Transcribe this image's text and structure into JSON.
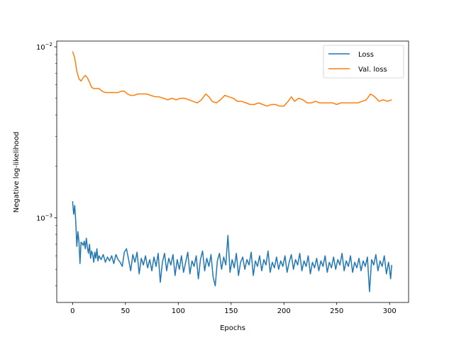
{
  "chart_data": {
    "type": "line",
    "title": "",
    "xlabel": "Epochs",
    "ylabel": "Negative log-likelihood",
    "xlim": [
      -15,
      318
    ],
    "ylim": [
      0.00032,
      0.0108
    ],
    "yscale": "log",
    "x_ticks": [
      0,
      50,
      100,
      150,
      200,
      250,
      300
    ],
    "x_tick_labels": [
      "0",
      "50",
      "100",
      "150",
      "200",
      "250",
      "300"
    ],
    "y_major_ticks": [
      0.001,
      0.01
    ],
    "y_tick_labels": [
      {
        "base": "10",
        "exp": "−3"
      },
      {
        "base": "10",
        "exp": "−2"
      }
    ],
    "grid": false,
    "legend_position": "upper right",
    "colors": {
      "loss": "#1f77b4",
      "val_loss": "#ff7f0e"
    },
    "series": [
      {
        "name": "Loss",
        "color": "#1f77b4",
        "points": [
          [
            0,
            0.00125
          ],
          [
            1,
            0.00105
          ],
          [
            2,
            0.00118
          ],
          [
            3,
            0.00095
          ],
          [
            4,
            0.00068
          ],
          [
            5,
            0.00083
          ],
          [
            6,
            0.00073
          ],
          [
            7,
            0.00054
          ],
          [
            8,
            0.00072
          ],
          [
            9,
            0.00071
          ],
          [
            10,
            0.00069
          ],
          [
            11,
            0.00073
          ],
          [
            12,
            0.00066
          ],
          [
            13,
            0.00076
          ],
          [
            14,
            0.00067
          ],
          [
            15,
            0.00062
          ],
          [
            16,
            0.0007
          ],
          [
            17,
            0.00058
          ],
          [
            18,
            0.00064
          ],
          [
            19,
            0.00061
          ],
          [
            20,
            0.00055
          ],
          [
            21,
            0.00063
          ],
          [
            22,
            0.00058
          ],
          [
            23,
            0.00066
          ],
          [
            24,
            0.00056
          ],
          [
            25,
            0.0006
          ],
          [
            27,
            0.00057
          ],
          [
            29,
            0.00061
          ],
          [
            31,
            0.00055
          ],
          [
            33,
            0.00059
          ],
          [
            35,
            0.00056
          ],
          [
            37,
            0.0006
          ],
          [
            39,
            0.00054
          ],
          [
            41,
            0.00061
          ],
          [
            43,
            0.00057
          ],
          [
            45,
            0.00055
          ],
          [
            47,
            0.00052
          ],
          [
            49,
            0.00063
          ],
          [
            51,
            0.00066
          ],
          [
            53,
            0.00057
          ],
          [
            55,
            0.00049
          ],
          [
            57,
            0.00061
          ],
          [
            59,
            0.00055
          ],
          [
            61,
            0.00063
          ],
          [
            63,
            0.00047
          ],
          [
            65,
            0.00058
          ],
          [
            67,
            0.00053
          ],
          [
            69,
            0.0006
          ],
          [
            71,
            0.00051
          ],
          [
            73,
            0.00057
          ],
          [
            75,
            0.00049
          ],
          [
            77,
            0.00059
          ],
          [
            79,
            0.00052
          ],
          [
            81,
            0.00062
          ],
          [
            83,
            0.00042
          ],
          [
            85,
            0.00055
          ],
          [
            87,
            0.00062
          ],
          [
            89,
            0.00049
          ],
          [
            91,
            0.00058
          ],
          [
            93,
            0.00053
          ],
          [
            95,
            0.00061
          ],
          [
            97,
            0.00046
          ],
          [
            99,
            0.00057
          ],
          [
            101,
            0.0005
          ],
          [
            103,
            0.0006
          ],
          [
            105,
            0.00048
          ],
          [
            107,
            0.00055
          ],
          [
            109,
            0.00063
          ],
          [
            111,
            0.00047
          ],
          [
            113,
            0.00056
          ],
          [
            115,
            0.00052
          ],
          [
            117,
            0.0006
          ],
          [
            119,
            0.00044
          ],
          [
            121,
            0.00057
          ],
          [
            123,
            0.00064
          ],
          [
            125,
            0.00049
          ],
          [
            127,
            0.00058
          ],
          [
            129,
            0.00052
          ],
          [
            131,
            0.00061
          ],
          [
            133,
            0.00045
          ],
          [
            135,
            0.0004
          ],
          [
            137,
            0.00056
          ],
          [
            139,
            0.00062
          ],
          [
            141,
            0.0005
          ],
          [
            143,
            0.00059
          ],
          [
            145,
            0.00053
          ],
          [
            147,
            0.00079
          ],
          [
            149,
            0.00048
          ],
          [
            151,
            0.00057
          ],
          [
            153,
            0.00051
          ],
          [
            155,
            0.00062
          ],
          [
            157,
            0.00046
          ],
          [
            159,
            0.00055
          ],
          [
            161,
            0.00059
          ],
          [
            163,
            0.0005
          ],
          [
            165,
            0.00057
          ],
          [
            167,
            0.00053
          ],
          [
            169,
            0.00063
          ],
          [
            171,
            0.00046
          ],
          [
            173,
            0.00056
          ],
          [
            175,
            0.00052
          ],
          [
            177,
            0.0006
          ],
          [
            179,
            0.00049
          ],
          [
            181,
            0.00057
          ],
          [
            183,
            0.00053
          ],
          [
            185,
            0.00064
          ],
          [
            187,
            0.00048
          ],
          [
            189,
            0.00055
          ],
          [
            191,
            0.00051
          ],
          [
            193,
            0.00059
          ],
          [
            195,
            0.0005
          ],
          [
            197,
            0.00056
          ],
          [
            199,
            0.00052
          ],
          [
            201,
            0.0006
          ],
          [
            203,
            0.00048
          ],
          [
            205,
            0.00055
          ],
          [
            207,
            0.00061
          ],
          [
            209,
            0.0005
          ],
          [
            211,
            0.00057
          ],
          [
            213,
            0.00053
          ],
          [
            215,
            0.00062
          ],
          [
            217,
            0.00049
          ],
          [
            219,
            0.00056
          ],
          [
            221,
            0.00052
          ],
          [
            223,
            0.0006
          ],
          [
            225,
            0.00047
          ],
          [
            227,
            0.00055
          ],
          [
            229,
            0.00051
          ],
          [
            231,
            0.00058
          ],
          [
            233,
            0.00049
          ],
          [
            235,
            0.00056
          ],
          [
            237,
            0.00052
          ],
          [
            239,
            0.0006
          ],
          [
            241,
            0.00048
          ],
          [
            243,
            0.00055
          ],
          [
            245,
            0.00051
          ],
          [
            247,
            0.00059
          ],
          [
            249,
            0.0005
          ],
          [
            251,
            0.00057
          ],
          [
            253,
            0.00053
          ],
          [
            255,
            0.00062
          ],
          [
            257,
            0.00049
          ],
          [
            259,
            0.00056
          ],
          [
            261,
            0.00052
          ],
          [
            263,
            0.0006
          ],
          [
            265,
            0.00048
          ],
          [
            267,
            0.00055
          ],
          [
            269,
            0.00051
          ],
          [
            271,
            0.00058
          ],
          [
            273,
            0.00049
          ],
          [
            275,
            0.00056
          ],
          [
            277,
            0.00052
          ],
          [
            279,
            0.00059
          ],
          [
            281,
            0.00037
          ],
          [
            283,
            0.00057
          ],
          [
            285,
            0.00053
          ],
          [
            287,
            0.00061
          ],
          [
            289,
            0.00049
          ],
          [
            291,
            0.00056
          ],
          [
            293,
            0.00052
          ],
          [
            295,
            0.0006
          ],
          [
            297,
            0.00047
          ],
          [
            299,
            0.00055
          ],
          [
            300,
            0.0005
          ],
          [
            301,
            0.00044
          ],
          [
            302,
            0.00053
          ]
        ]
      },
      {
        "name": "Val. loss",
        "color": "#ff7f0e",
        "points": [
          [
            0,
            0.0094
          ],
          [
            2,
            0.0086
          ],
          [
            4,
            0.0072
          ],
          [
            6,
            0.0065
          ],
          [
            8,
            0.0063
          ],
          [
            10,
            0.0066
          ],
          [
            12,
            0.0068
          ],
          [
            14,
            0.0066
          ],
          [
            16,
            0.0062
          ],
          [
            18,
            0.0058
          ],
          [
            20,
            0.0057
          ],
          [
            22,
            0.0057
          ],
          [
            25,
            0.0057
          ],
          [
            28,
            0.0055
          ],
          [
            31,
            0.0054
          ],
          [
            34,
            0.0054
          ],
          [
            37,
            0.0054
          ],
          [
            40,
            0.0054
          ],
          [
            43,
            0.0054
          ],
          [
            46,
            0.0055
          ],
          [
            49,
            0.0055
          ],
          [
            52,
            0.0053
          ],
          [
            55,
            0.0052
          ],
          [
            58,
            0.0052
          ],
          [
            62,
            0.0053
          ],
          [
            66,
            0.0053
          ],
          [
            70,
            0.0053
          ],
          [
            74,
            0.0052
          ],
          [
            78,
            0.0051
          ],
          [
            82,
            0.0051
          ],
          [
            86,
            0.005
          ],
          [
            90,
            0.0049
          ],
          [
            94,
            0.005
          ],
          [
            98,
            0.0049
          ],
          [
            102,
            0.005
          ],
          [
            106,
            0.005
          ],
          [
            110,
            0.0049
          ],
          [
            114,
            0.0048
          ],
          [
            118,
            0.0047
          ],
          [
            122,
            0.0049
          ],
          [
            126,
            0.0053
          ],
          [
            129,
            0.0051
          ],
          [
            132,
            0.0048
          ],
          [
            136,
            0.0047
          ],
          [
            140,
            0.0049
          ],
          [
            144,
            0.0052
          ],
          [
            148,
            0.0051
          ],
          [
            152,
            0.005
          ],
          [
            156,
            0.0048
          ],
          [
            160,
            0.0048
          ],
          [
            164,
            0.0047
          ],
          [
            168,
            0.0046
          ],
          [
            172,
            0.0046
          ],
          [
            176,
            0.0047
          ],
          [
            180,
            0.0046
          ],
          [
            184,
            0.0045
          ],
          [
            188,
            0.0046
          ],
          [
            192,
            0.0046
          ],
          [
            196,
            0.0045
          ],
          [
            200,
            0.0045
          ],
          [
            204,
            0.0048
          ],
          [
            207,
            0.0051
          ],
          [
            210,
            0.0048
          ],
          [
            214,
            0.005
          ],
          [
            218,
            0.0049
          ],
          [
            222,
            0.0047
          ],
          [
            226,
            0.0047
          ],
          [
            230,
            0.0048
          ],
          [
            234,
            0.0047
          ],
          [
            238,
            0.0047
          ],
          [
            242,
            0.0047
          ],
          [
            246,
            0.0047
          ],
          [
            250,
            0.0046
          ],
          [
            254,
            0.0047
          ],
          [
            258,
            0.0047
          ],
          [
            262,
            0.0047
          ],
          [
            266,
            0.0047
          ],
          [
            270,
            0.0047
          ],
          [
            274,
            0.0048
          ],
          [
            278,
            0.0049
          ],
          [
            282,
            0.0053
          ],
          [
            286,
            0.0051
          ],
          [
            290,
            0.0048
          ],
          [
            294,
            0.0049
          ],
          [
            298,
            0.0048
          ],
          [
            302,
            0.0049
          ]
        ]
      }
    ]
  }
}
